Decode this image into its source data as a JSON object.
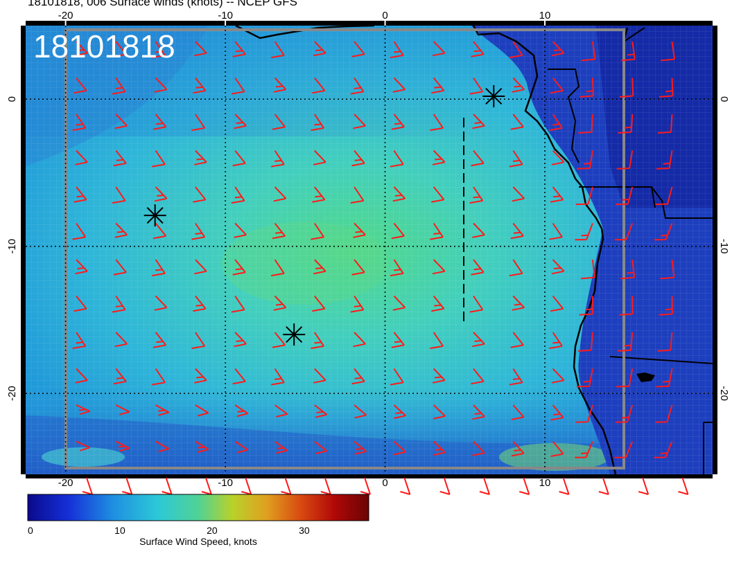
{
  "title": "18101818, 006 Surface winds (knots) -- NCEP GFS",
  "stamp": "18101818",
  "map": {
    "lon_ticks": [
      "-20",
      "-10",
      "0",
      "10"
    ],
    "lat_ticks": [
      "0",
      "-10",
      "-20"
    ],
    "lon_range": [
      -22.5,
      20.5
    ],
    "lat_range": [
      -25.5,
      5.0
    ],
    "storm_markers": [
      {
        "lon": 6.8,
        "lat": 0.2
      },
      {
        "lon": -14.4,
        "lat": -7.9
      },
      {
        "lon": -5.7,
        "lat": -16.0
      }
    ],
    "colors": {
      "barb": "#ff1a1a",
      "ocean_low": "#1b2fb8",
      "ocean_mid": "#29a6d6",
      "ocean_high": "#46d4bc",
      "land": "#1535b0",
      "coast": "#000000"
    }
  },
  "colorbar": {
    "label": "Surface Wind Speed, knots",
    "ticks": [
      "0",
      "10",
      "20",
      "30"
    ],
    "tick_values": [
      0,
      10,
      20,
      30
    ],
    "max": 37
  }
}
